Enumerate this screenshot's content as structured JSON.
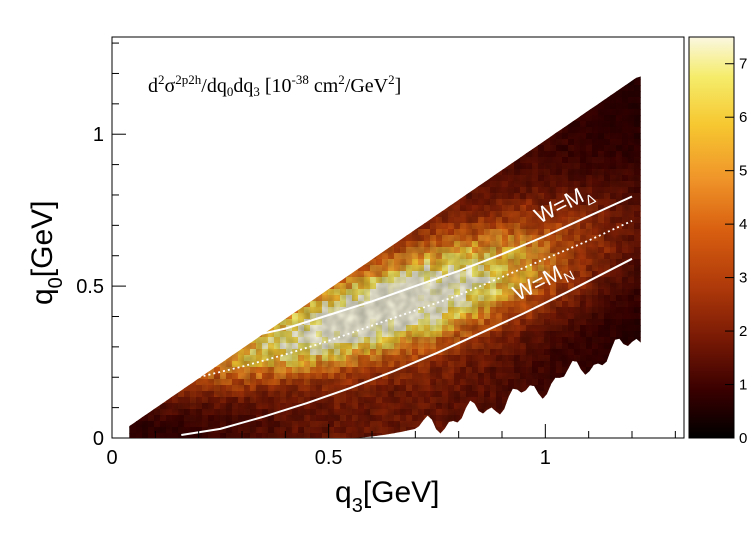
{
  "chart_data": {
    "type": "heatmap",
    "title": {
      "d": "d",
      "d_sup": "2",
      "sigma": "σ",
      "sigma_sup": "2p2h",
      "mid": "/dq",
      "mid_sub": "0",
      "mid2": "dq",
      "mid2_sub": "3",
      "units_a": " [10",
      "units_a_sup": "-38",
      "units_b": " cm",
      "units_b_sup": "2",
      "units_c": "/GeV",
      "units_c_sup": "2",
      "units_d": "]"
    },
    "xlabel": {
      "main": "q",
      "sub": "3",
      "unit": "[GeV]"
    },
    "ylabel": {
      "main": "q",
      "sub": "0",
      "unit": "[GeV]"
    },
    "xlim": [
      0,
      1.32
    ],
    "ylim": [
      0,
      1.32
    ],
    "x_ticks": [
      {
        "value": 0,
        "label": "0"
      },
      {
        "value": 0.5,
        "label": "0.5"
      },
      {
        "value": 1,
        "label": "1"
      }
    ],
    "y_ticks": [
      {
        "value": 0,
        "label": "0"
      },
      {
        "value": 0.5,
        "label": "0.5"
      },
      {
        "value": 1,
        "label": "1"
      }
    ],
    "colorbar": {
      "range": [
        0,
        7.5
      ],
      "ticks": [
        {
          "value": 0,
          "label": "0"
        },
        {
          "value": 1,
          "label": "1"
        },
        {
          "value": 2,
          "label": "2"
        },
        {
          "value": 3,
          "label": "3"
        },
        {
          "value": 4,
          "label": "4"
        },
        {
          "value": 5,
          "label": "5"
        },
        {
          "value": 6,
          "label": "6"
        },
        {
          "value": 7,
          "label": "7"
        }
      ],
      "colors": [
        "#000000",
        "#3a0000",
        "#7a1a05",
        "#b03a0a",
        "#d96010",
        "#f0962a",
        "#f6c730",
        "#f5ec6a",
        "#faf7e0"
      ]
    },
    "region": {
      "description_free": true,
      "q3_range": [
        0.04,
        1.22
      ],
      "upper_boundary_slope": 0.98,
      "peak_value": 7.2
    },
    "curves": [
      {
        "name": "W=M",
        "name_sub": "Δ",
        "style": "solid",
        "points": [
          [
            0.32,
            0.335
          ],
          [
            0.4,
            0.36
          ],
          [
            0.5,
            0.405
          ],
          [
            0.6,
            0.45
          ],
          [
            0.7,
            0.5
          ],
          [
            0.8,
            0.55
          ],
          [
            0.9,
            0.605
          ],
          [
            1.0,
            0.665
          ],
          [
            1.1,
            0.73
          ],
          [
            1.2,
            0.795
          ]
        ]
      },
      {
        "name": "",
        "name_sub": "",
        "style": "dotted",
        "points": [
          [
            0.2,
            0.2
          ],
          [
            0.3,
            0.235
          ],
          [
            0.4,
            0.275
          ],
          [
            0.5,
            0.32
          ],
          [
            0.6,
            0.37
          ],
          [
            0.7,
            0.42
          ],
          [
            0.8,
            0.47
          ],
          [
            0.9,
            0.53
          ],
          [
            1.0,
            0.59
          ],
          [
            1.1,
            0.65
          ],
          [
            1.2,
            0.715
          ]
        ]
      },
      {
        "name": "W=M",
        "name_sub": "N",
        "style": "solid",
        "points": [
          [
            0.16,
            0.01
          ],
          [
            0.25,
            0.03
          ],
          [
            0.35,
            0.07
          ],
          [
            0.45,
            0.115
          ],
          [
            0.55,
            0.165
          ],
          [
            0.65,
            0.22
          ],
          [
            0.75,
            0.28
          ],
          [
            0.85,
            0.345
          ],
          [
            0.95,
            0.41
          ],
          [
            1.05,
            0.48
          ],
          [
            1.2,
            0.59
          ]
        ]
      }
    ]
  }
}
